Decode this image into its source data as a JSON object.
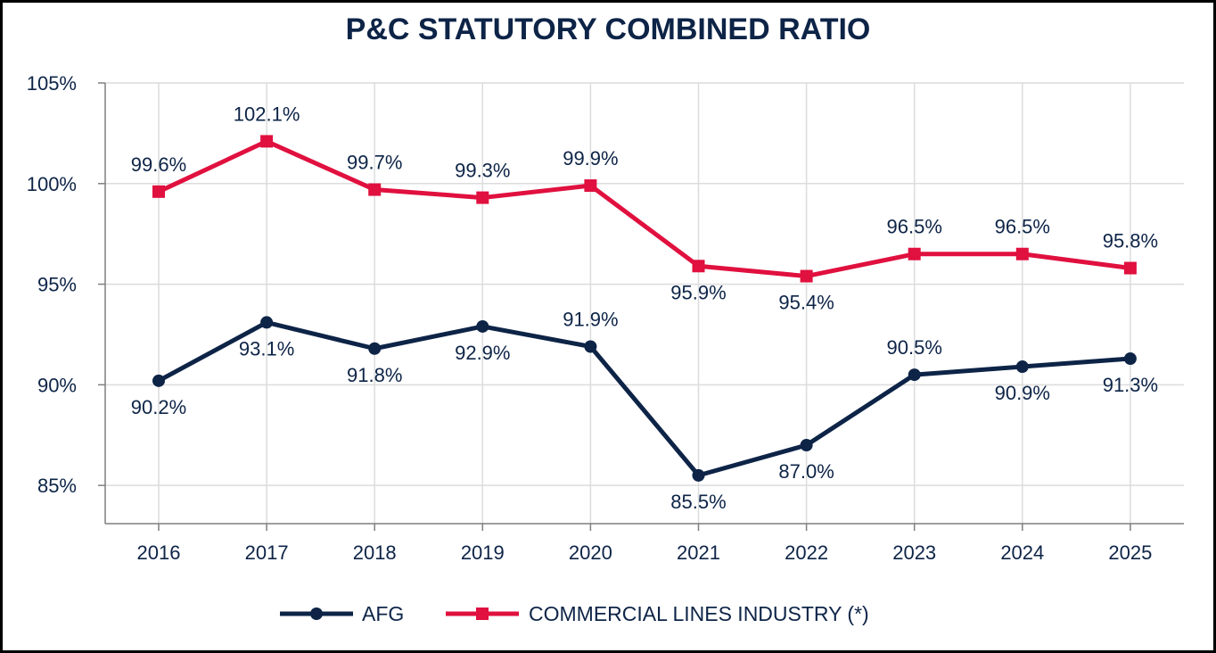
{
  "chart_data": {
    "type": "line",
    "title": "P&C STATUTORY COMBINED RATIO",
    "categories": [
      "2016",
      "2017",
      "2018",
      "2019",
      "2020",
      "2021",
      "2022",
      "2023",
      "2024",
      "2025"
    ],
    "y_ticks": [
      "85%",
      "90%",
      "95%",
      "100%",
      "105%"
    ],
    "y_tick_values": [
      85,
      90,
      95,
      100,
      105
    ],
    "ylim": [
      83.1,
      105
    ],
    "grid": true,
    "legend_position": "bottom",
    "series": [
      {
        "name": "AFG",
        "color": "#0d2447",
        "marker": "circle",
        "values": [
          90.2,
          93.1,
          91.8,
          92.9,
          91.9,
          85.5,
          87.0,
          90.5,
          90.9,
          91.3
        ],
        "labels": [
          "90.2%",
          "93.1%",
          "91.8%",
          "92.9%",
          "91.9%",
          "85.5%",
          "87.0%",
          "90.5%",
          "90.9%",
          "91.3%"
        ],
        "label_positions": [
          "below",
          "below",
          "below",
          "below",
          "above",
          "below",
          "below",
          "above",
          "below",
          "below"
        ]
      },
      {
        "name": "COMMERCIAL LINES INDUSTRY (*)",
        "color": "#e0103f",
        "marker": "square",
        "values": [
          99.6,
          102.1,
          99.7,
          99.3,
          99.9,
          95.9,
          95.4,
          96.5,
          96.5,
          95.8
        ],
        "labels": [
          "99.6%",
          "102.1%",
          "99.7%",
          "99.3%",
          "99.9%",
          "95.9%",
          "95.4%",
          "96.5%",
          "96.5%",
          "95.8%"
        ],
        "label_positions": [
          "above",
          "above",
          "above",
          "above",
          "above",
          "below",
          "below",
          "above",
          "above",
          "above"
        ]
      }
    ]
  },
  "colors": {
    "axis": "#7f7f7f",
    "grid": "#dcdcdc",
    "text": "#0d2447"
  }
}
